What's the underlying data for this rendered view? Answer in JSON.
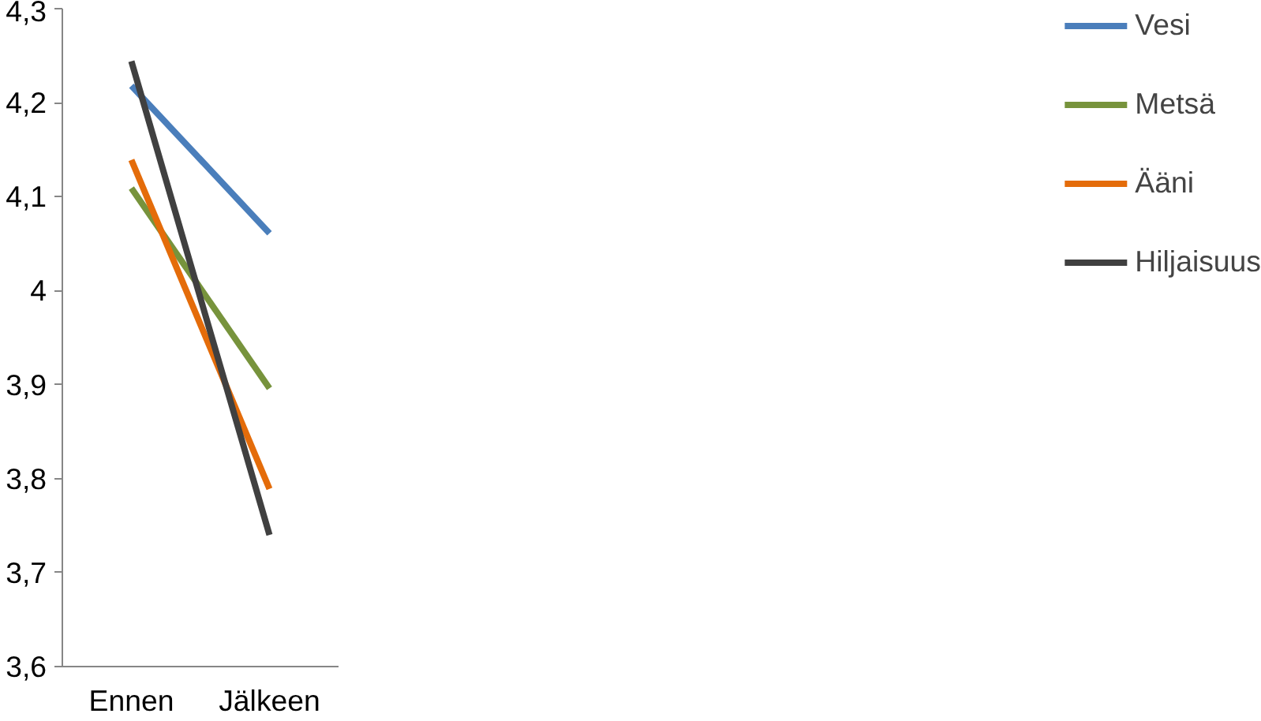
{
  "chart_data": {
    "type": "line",
    "categories": [
      "Ennen",
      "Jälkeen"
    ],
    "series": [
      {
        "name": "Vesi",
        "color": "#4a7ebb",
        "values": [
          4.218,
          4.061
        ]
      },
      {
        "name": "Metsä",
        "color": "#77933c",
        "values": [
          4.109,
          3.896
        ]
      },
      {
        "name": "Ääni",
        "color": "#e46c0a",
        "values": [
          4.139,
          3.789
        ]
      },
      {
        "name": "Hiljaisuus",
        "color": "#404040",
        "values": [
          4.244,
          3.74
        ]
      }
    ],
    "ylim": [
      3.6,
      4.3
    ],
    "yticks": [
      {
        "value": 3.6,
        "label": "3,6"
      },
      {
        "value": 3.7,
        "label": "3,7"
      },
      {
        "value": 3.8,
        "label": "3,8"
      },
      {
        "value": 3.9,
        "label": "3,9"
      },
      {
        "value": 4,
        "label": "4"
      },
      {
        "value": 4.1,
        "label": "4,1"
      },
      {
        "value": 4.2,
        "label": "4,2"
      },
      {
        "value": 4.3,
        "label": "4,3"
      }
    ],
    "grid": false,
    "legend": "right",
    "marker": "none",
    "line_style": "solid"
  }
}
